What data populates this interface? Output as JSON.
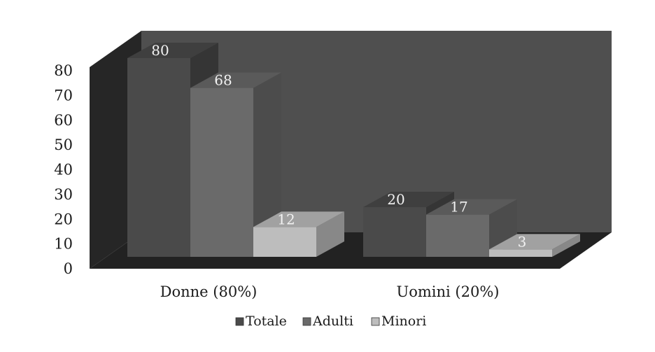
{
  "chart_data": {
    "type": "bar",
    "title": "",
    "xlabel": "",
    "ylabel": "",
    "categories": [
      "Donne (80%)",
      "Uomini (20%)"
    ],
    "yticks": [
      "0",
      "10",
      "20",
      "30",
      "40",
      "50",
      "60",
      "70",
      "80"
    ],
    "ylim": [
      0,
      80
    ],
    "three_d": true,
    "grid": false,
    "legend_position": "bottom",
    "series": [
      {
        "name": "Totale",
        "values": [
          80,
          20
        ],
        "color": "#4a4a4a"
      },
      {
        "name": "Adulti",
        "values": [
          68,
          17
        ],
        "color": "#6a6a6a"
      },
      {
        "name": "Minori",
        "values": [
          12,
          3
        ],
        "color": "#bdbdbd"
      }
    ],
    "data_labels": [
      [
        "80",
        "20"
      ],
      [
        "68",
        "17"
      ],
      [
        "12",
        "3"
      ]
    ],
    "colors": {
      "back_wall": "#4f4f4f",
      "side_wall": "#262626",
      "floor": "#222222",
      "background": "#ffffff"
    }
  }
}
